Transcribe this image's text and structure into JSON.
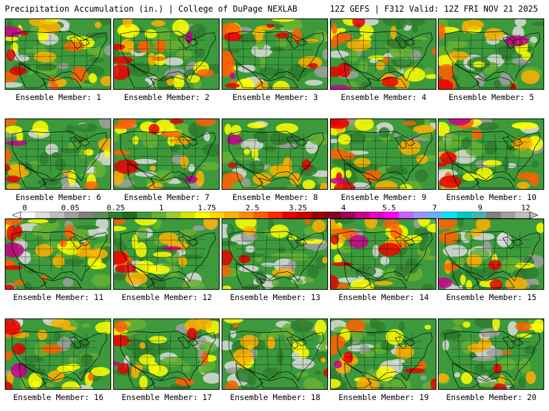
{
  "header": {
    "title_left": "Precipitation Accumulation (in.) | College of DuPage NEXLAB",
    "title_right": "12Z GEFS | F312 Valid: 12Z FRI NOV 21 2025"
  },
  "members": [
    {
      "label": "Ensemble Member: 1",
      "wet": 0.55,
      "heavy": 0.3
    },
    {
      "label": "Ensemble Member: 2",
      "wet": 0.55,
      "heavy": 0.25
    },
    {
      "label": "Ensemble Member: 3",
      "wet": 0.5,
      "heavy": 0.45
    },
    {
      "label": "Ensemble Member: 4",
      "wet": 0.55,
      "heavy": 0.35
    },
    {
      "label": "Ensemble Member: 5",
      "wet": 0.45,
      "heavy": 0.2
    },
    {
      "label": "Ensemble Member: 6",
      "wet": 0.5,
      "heavy": 0.2
    },
    {
      "label": "Ensemble Member: 7",
      "wet": 0.55,
      "heavy": 0.3
    },
    {
      "label": "Ensemble Member: 8",
      "wet": 0.5,
      "heavy": 0.2
    },
    {
      "label": "Ensemble Member: 9",
      "wet": 0.55,
      "heavy": 0.4
    },
    {
      "label": "Ensemble Member: 10",
      "wet": 0.55,
      "heavy": 0.3
    },
    {
      "label": "Ensemble Member: 11",
      "wet": 0.5,
      "heavy": 0.35
    },
    {
      "label": "Ensemble Member: 12",
      "wet": 0.5,
      "heavy": 0.2
    },
    {
      "label": "Ensemble Member: 13",
      "wet": 0.35,
      "heavy": 0.15
    },
    {
      "label": "Ensemble Member: 14",
      "wet": 0.55,
      "heavy": 0.4
    },
    {
      "label": "Ensemble Member: 15",
      "wet": 0.45,
      "heavy": 0.2
    },
    {
      "label": "Ensemble Member: 16",
      "wet": 0.55,
      "heavy": 0.25
    },
    {
      "label": "Ensemble Member: 17",
      "wet": 0.55,
      "heavy": 0.3
    },
    {
      "label": "Ensemble Member: 18",
      "wet": 0.4,
      "heavy": 0.1
    },
    {
      "label": "Ensemble Member: 19",
      "wet": 0.45,
      "heavy": 0.25
    },
    {
      "label": "Ensemble Member: 20",
      "wet": 0.45,
      "heavy": 0.15
    }
  ],
  "colorbar": {
    "ticks": [
      "0",
      "0.05",
      "0.25",
      "1",
      "1.75",
      "2.5",
      "3.25",
      "4",
      "5.5",
      "7",
      "9",
      "12"
    ],
    "colors": [
      "#ffffff",
      "#dcdcdc",
      "#bfbfbf",
      "#a0a0a0",
      "#7f7f7f",
      "#5a8f5a",
      "#2e7d2e",
      "#1f6b1f",
      "#3c9a3c",
      "#66b032",
      "#9ccc2e",
      "#d4e600",
      "#ffff00",
      "#ffd700",
      "#ffb000",
      "#ff8c00",
      "#ff6000",
      "#ff2a00",
      "#e60000",
      "#c80000",
      "#a00000",
      "#800020",
      "#a0005a",
      "#c8008c",
      "#e600c8",
      "#ff00ff",
      "#c864ff",
      "#9696ff",
      "#64b4ff",
      "#00e6ff",
      "#00c8c8",
      "#40b4b4",
      "#808080",
      "#a0a0a0",
      "#c0c0c0"
    ]
  }
}
